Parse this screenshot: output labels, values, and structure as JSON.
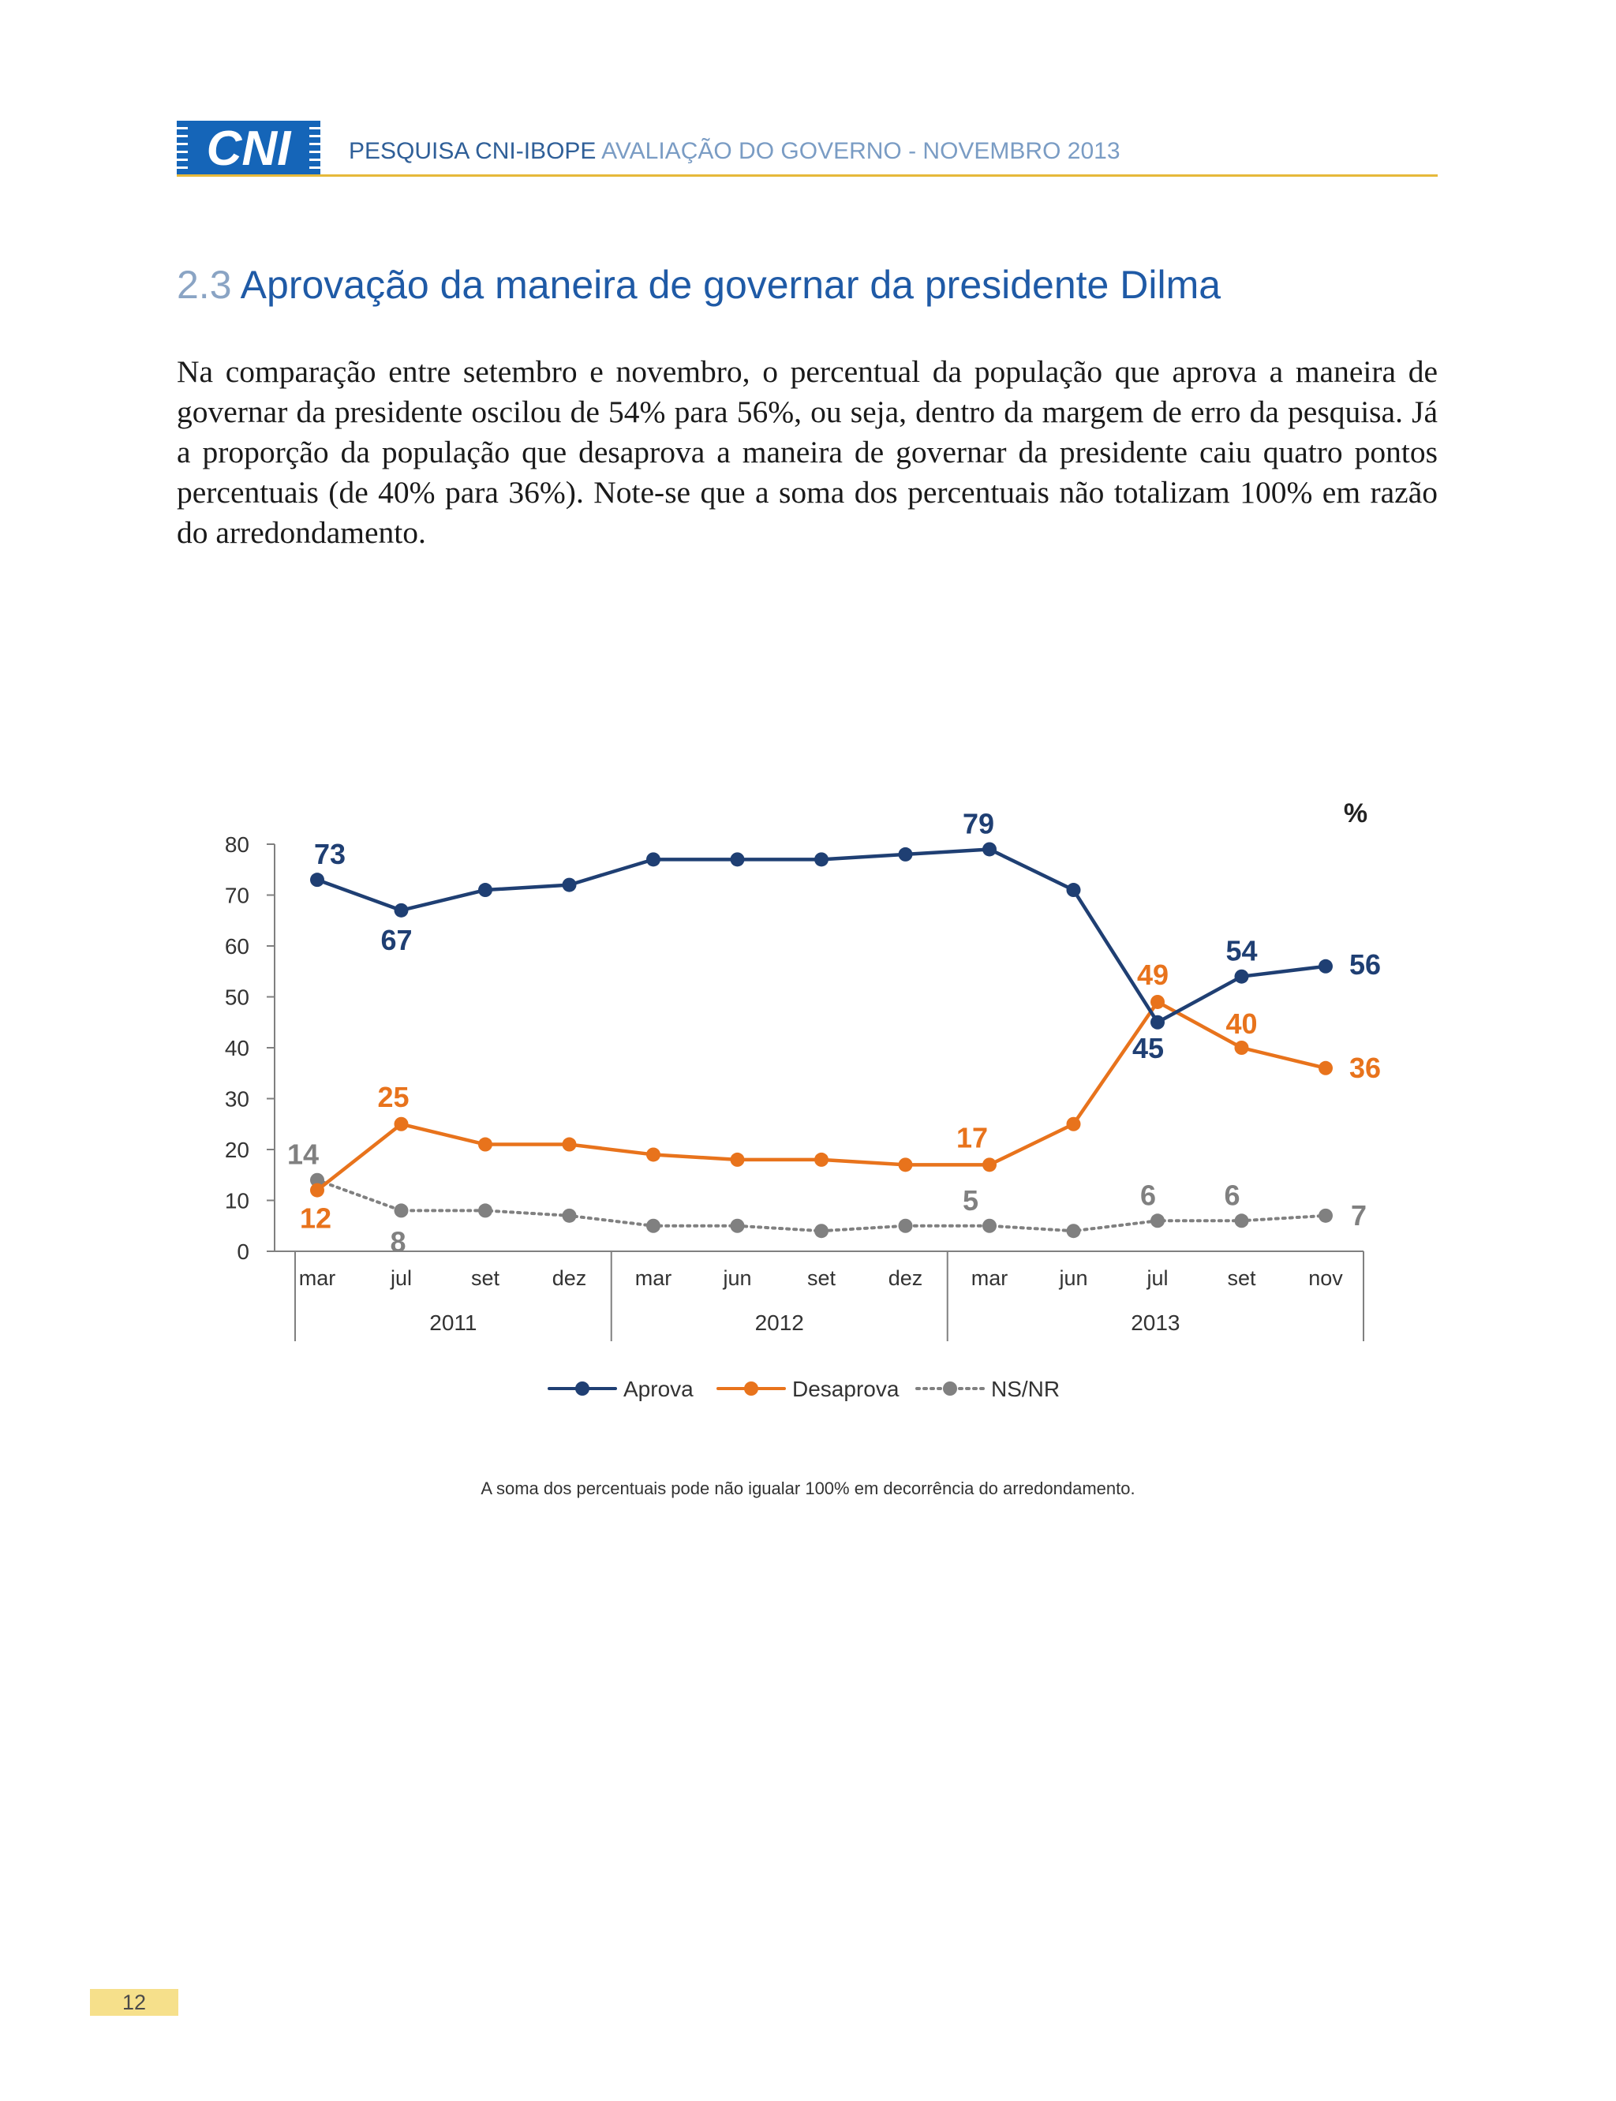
{
  "header": {
    "logo_text": "CNI",
    "title_bold": "PESQUISA CNI-IBOPE",
    "title_light": "AVALIAÇÃO DO GOVERNO - NOVEMBRO 2013"
  },
  "section": {
    "number": "2.3",
    "title": "Aprovação da maneira de governar da presidente Dilma"
  },
  "body_text": "Na comparação entre setembro e novembro, o percentual da população que aprova a maneira de governar da presidente oscilou de 54% para 56%, ou seja, dentro da margem de erro da pesquisa. Já a proporção da população que desaprova a maneira de governar da presidente caiu quatro pontos percentuais (de 40% para 36%). Note-se que a soma dos percentuais não totalizam 100% em razão do arredondamento.",
  "chart_data": {
    "type": "line",
    "unit": "%",
    "categories": [
      "mar",
      "jul",
      "set",
      "dez",
      "mar",
      "jun",
      "set",
      "dez",
      "mar",
      "jun",
      "jul",
      "set",
      "nov"
    ],
    "year_groups": [
      {
        "label": "2011",
        "count": 4
      },
      {
        "label": "2012",
        "count": 4
      },
      {
        "label": "2013",
        "count": 5
      }
    ],
    "ylim": [
      0,
      80
    ],
    "yticks": [
      0,
      10,
      20,
      30,
      40,
      50,
      60,
      70,
      80
    ],
    "series": [
      {
        "name": "Aprova",
        "color": "#1f3f73",
        "style": "solid",
        "values": [
          73,
          67,
          71,
          72,
          77,
          77,
          77,
          78,
          79,
          71,
          45,
          54,
          56
        ],
        "labels": [
          "73",
          "67",
          "",
          "",
          "",
          "",
          "",
          "",
          "79",
          "",
          "45",
          "54",
          "56"
        ]
      },
      {
        "name": "Desaprova",
        "color": "#e8731c",
        "style": "solid",
        "values": [
          12,
          25,
          21,
          21,
          19,
          18,
          18,
          17,
          17,
          25,
          49,
          40,
          36
        ],
        "labels": [
          "12",
          "25",
          "",
          "",
          "",
          "",
          "",
          "",
          "17",
          "",
          "49",
          "40",
          "36"
        ]
      },
      {
        "name": "NS/NR",
        "color": "#808080",
        "style": "dotted",
        "values": [
          14,
          8,
          8,
          7,
          5,
          5,
          4,
          5,
          5,
          4,
          6,
          6,
          7
        ],
        "labels": [
          "14",
          "8",
          "",
          "",
          "",
          "",
          "",
          "",
          "5",
          "",
          "6",
          "6",
          "7"
        ]
      }
    ],
    "footnote": "A soma dos percentuais pode não igualar 100% em decorrência do arredondamento.",
    "legend_position": "bottom"
  },
  "page_number": "12"
}
